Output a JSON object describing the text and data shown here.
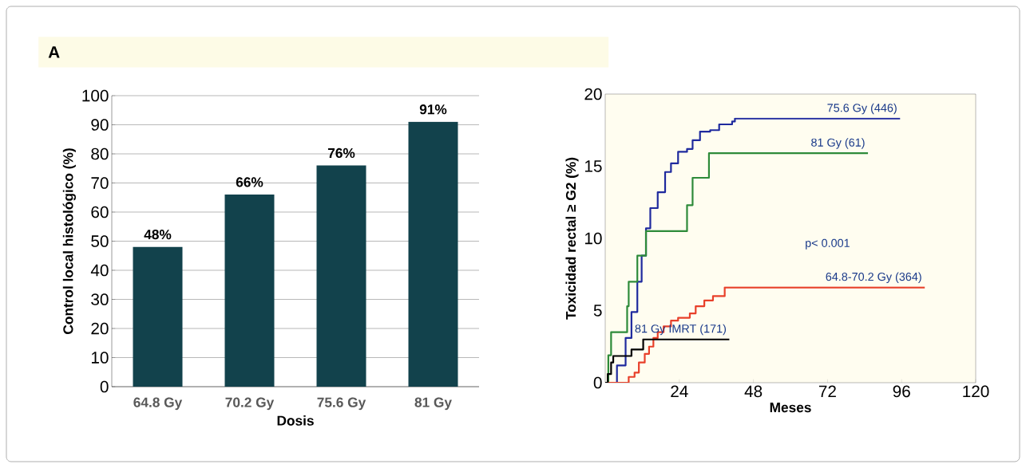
{
  "chart_data": [
    {
      "type": "bar",
      "title": "A",
      "xlabel": "Dosis",
      "ylabel": "Control local histológico (%)",
      "categories": [
        "64.8 Gy",
        "70.2 Gy",
        "75.6 Gy",
        "81 Gy"
      ],
      "values": [
        48,
        66,
        76,
        91
      ],
      "color": "#12424c",
      "value_labels": [
        "48%",
        "66%",
        "76%",
        "91%"
      ],
      "ylim": [
        0,
        100
      ],
      "yticks": [
        0,
        10,
        20,
        30,
        40,
        50,
        60,
        70,
        80,
        90,
        100
      ],
      "grid": "y"
    },
    {
      "type": "step",
      "xlabel": "Meses",
      "ylabel": "Toxicidad rectal ≥ G2 (%)",
      "xlim": [
        0,
        120
      ],
      "xticks": [
        24,
        48,
        72,
        96,
        120
      ],
      "ylim": [
        0,
        20
      ],
      "yticks": [
        0,
        5,
        10,
        15,
        20
      ],
      "annotations": [
        "p< 0.001"
      ],
      "series": [
        {
          "name": "75.6 Gy (446)",
          "color": "#1f2a9e",
          "x": [
            0,
            1.9,
            3.8,
            6.6,
            8.5,
            10.4,
            11.8,
            13.2,
            14.6,
            17,
            19.4,
            21.3,
            23.6,
            26.5,
            28.3,
            30.7,
            34,
            36.9,
            41.1,
            42,
            95.5
          ],
          "values": [
            0,
            0,
            1.2,
            3.1,
            4.9,
            7,
            8.8,
            10.7,
            12.1,
            13.2,
            14.6,
            15.2,
            16,
            16.2,
            16.8,
            17.4,
            17.5,
            17.9,
            18.1,
            18.3,
            18.3
          ]
        },
        {
          "name": "81 Gy (61)",
          "color": "#2e8b3a",
          "x": [
            0,
            1,
            1.9,
            7.1,
            7.6,
            10.4,
            13.2,
            26.5,
            28.3,
            33.6,
            85.1
          ],
          "values": [
            0,
            1.9,
            3.5,
            5.3,
            7,
            8.8,
            10.5,
            12.3,
            14.2,
            15.9,
            15.9
          ]
        },
        {
          "name": "64.8-70.2 Gy (364)",
          "color": "#e8402a",
          "x": [
            0,
            7.6,
            9.5,
            10.9,
            12.8,
            14.2,
            15.6,
            17,
            18.9,
            21.3,
            23.6,
            27.4,
            29.3,
            32.1,
            34.9,
            38.7,
            103.5
          ],
          "values": [
            0,
            0.4,
            0.7,
            1.4,
            2,
            2.5,
            3.1,
            3.5,
            3.9,
            4.3,
            4.5,
            4.8,
            5.3,
            5.7,
            6,
            6.6,
            6.6
          ]
        },
        {
          "name": "81 Gy IMRT (171)",
          "color": "#000000",
          "x": [
            0,
            0.8,
            1.9,
            2.6,
            8.5,
            12.3,
            40.2
          ],
          "values": [
            0,
            0.6,
            1.4,
            1.85,
            2.3,
            3.0,
            3.0
          ]
        }
      ]
    }
  ]
}
